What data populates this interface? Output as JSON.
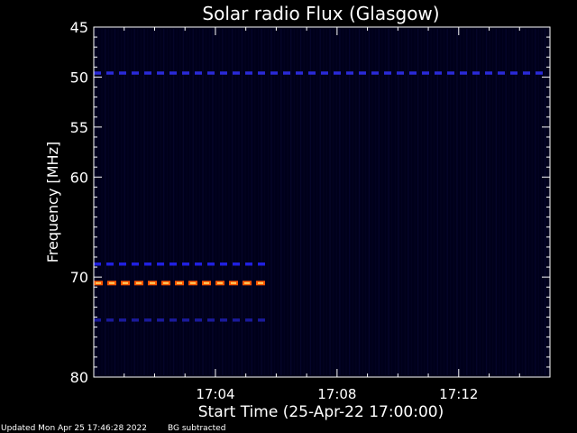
{
  "chart_data": {
    "type": "heatmap",
    "title": "Solar radio Flux (Glasgow)",
    "xlabel": "Start Time (25-Apr-22 17:00:00)",
    "ylabel": "Frequency [MHz]",
    "x_range_minutes": [
      0,
      15
    ],
    "y_range_mhz": [
      45,
      80
    ],
    "y_axis_inverted": true,
    "x_ticks": [
      {
        "minutes": 4,
        "label": "17:04"
      },
      {
        "minutes": 8,
        "label": "17:08"
      },
      {
        "minutes": 12,
        "label": "17:12"
      }
    ],
    "y_ticks": [
      {
        "mhz": 45,
        "label": "45"
      },
      {
        "mhz": 50,
        "label": "50"
      },
      {
        "mhz": 55,
        "label": "55"
      },
      {
        "mhz": 60,
        "label": "60"
      },
      {
        "mhz": 70,
        "label": "70"
      },
      {
        "mhz": 80,
        "label": "80"
      }
    ],
    "grid": false,
    "background_color": "#00001a",
    "features": [
      {
        "name": "rfi-50mhz",
        "mhz": 49.6,
        "t_start": 0,
        "t_end": 15,
        "intensity": "medium",
        "color": "#2a2ad8",
        "dashed": true
      },
      {
        "name": "band-68mhz",
        "mhz": 68.7,
        "t_start": 0,
        "t_end": 5.8,
        "intensity": "medium",
        "color": "#2020e0",
        "dashed": true
      },
      {
        "name": "band-70mhz-hot",
        "mhz": 70.6,
        "t_start": 0,
        "t_end": 5.8,
        "intensity": "high",
        "color": "#ff5500",
        "dashed": true
      },
      {
        "name": "band-74mhz",
        "mhz": 74.3,
        "t_start": 0,
        "t_end": 5.8,
        "intensity": "low",
        "color": "#1a1a9a",
        "dashed": true
      }
    ]
  },
  "footer": {
    "updated": "Updated Mon Apr 25 17:46:28 2022",
    "note": "BG subtracted"
  }
}
